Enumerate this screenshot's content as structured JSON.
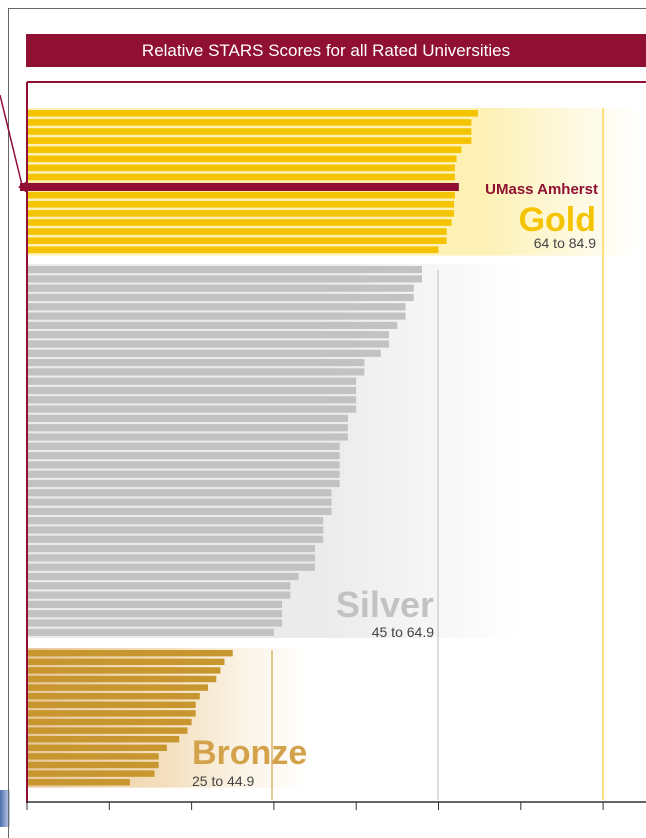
{
  "title": "Relative STARS Scores for all Rated Universities",
  "chart_data": {
    "type": "bar",
    "orientation": "horizontal",
    "title": "Relative STARS Scores for all Rated Universities",
    "xlim": [
      0,
      70
    ],
    "x_ticks_unlabeled": [
      0,
      10,
      20,
      30,
      40,
      50,
      60,
      70
    ],
    "highlight": {
      "label": "UMass Amherst",
      "value": 52.0,
      "color": "#8f1032"
    },
    "tiers": [
      {
        "name": "Gold",
        "range_label": "64 to 84.9",
        "color": "#f5c400",
        "text_color": "#f5c400",
        "band_color": "#fdf1b6",
        "values": [
          54.8,
          54.0,
          54.0,
          54.0,
          52.8,
          52.2,
          52.0,
          52.0,
          52.0,
          52.0,
          51.9,
          51.9,
          51.6,
          51.0,
          51.0,
          50.0
        ]
      },
      {
        "name": "Silver",
        "range_label": "45 to 64.9",
        "color": "#c2c2c2",
        "text_color": "#c2c2c2",
        "band_color": "#e9e9e9",
        "values": [
          48.0,
          48.0,
          47.0,
          47.0,
          46.0,
          46.0,
          45.0,
          44.0,
          44.0,
          43.0,
          41.0,
          41.0,
          40.0,
          40.0,
          40.0,
          40.0,
          39.0,
          39.0,
          39.0,
          38.0,
          38.0,
          38.0,
          38.0,
          38.0,
          37.0,
          37.0,
          37.0,
          36.0,
          36.0,
          36.0,
          35.0,
          35.0,
          35.0,
          33.0,
          32.0,
          32.0,
          31.0,
          31.0,
          31.0,
          30.0
        ]
      },
      {
        "name": "Bronze",
        "range_label": "25 to 44.9",
        "color": "#c8962e",
        "text_color": "#d4a24a",
        "band_color": "#f2dcb6",
        "values": [
          25.0,
          24.0,
          23.5,
          23.0,
          22.0,
          21.0,
          20.5,
          20.5,
          20.0,
          19.5,
          18.5,
          17.0,
          16.0,
          16.0,
          15.5,
          12.5
        ]
      }
    ]
  }
}
